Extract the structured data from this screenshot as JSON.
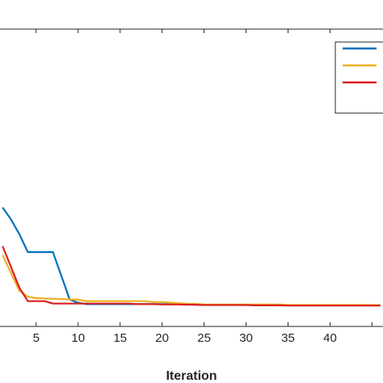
{
  "chart_data": {
    "type": "line",
    "title": "",
    "xlabel": "Iteration",
    "ylabel": "",
    "xlim": [
      0.5,
      46.5
    ],
    "ylim": [
      0,
      1
    ],
    "x_ticks": [
      5,
      10,
      15,
      20,
      25,
      30,
      35,
      40
    ],
    "grid": false,
    "legend": {
      "placement": "top-right",
      "entries": [
        "",
        "",
        ""
      ]
    },
    "series": [
      {
        "color": "#0072BD",
        "x": [
          1,
          2,
          3,
          4,
          5,
          6,
          7,
          8,
          9,
          10,
          11,
          12,
          13,
          14,
          15,
          16,
          17,
          18,
          19,
          20,
          21,
          22,
          23,
          24,
          25,
          26,
          27,
          28,
          29,
          30,
          31,
          32,
          33,
          34,
          35,
          36,
          37,
          38,
          39,
          40,
          41,
          42,
          43,
          44,
          45,
          46
        ],
        "y": [
          0.4,
          0.36,
          0.31,
          0.25,
          0.25,
          0.25,
          0.25,
          0.17,
          0.09,
          0.08,
          0.075,
          0.075,
          0.075,
          0.075,
          0.075,
          0.075,
          0.075,
          0.075,
          0.075,
          0.075,
          0.075,
          0.075,
          0.075,
          0.073,
          0.073,
          0.073,
          0.073,
          0.073,
          0.073,
          0.073,
          0.073,
          0.073,
          0.073,
          0.073,
          0.071,
          0.071,
          0.071,
          0.071,
          0.071,
          0.071,
          0.071,
          0.071,
          0.071,
          0.071,
          0.071,
          0.071
        ]
      },
      {
        "color": "#EDB120",
        "x": [
          1,
          2,
          3,
          4,
          5,
          6,
          7,
          8,
          9,
          10,
          11,
          12,
          13,
          14,
          15,
          16,
          17,
          18,
          19,
          20,
          21,
          22,
          23,
          24,
          25,
          26,
          27,
          28,
          29,
          30,
          31,
          32,
          33,
          34,
          35,
          36,
          37,
          38,
          39,
          40,
          41,
          42,
          43,
          44,
          45,
          46
        ],
        "y": [
          0.24,
          0.18,
          0.12,
          0.1,
          0.095,
          0.094,
          0.093,
          0.092,
          0.091,
          0.09,
          0.085,
          0.085,
          0.085,
          0.085,
          0.085,
          0.085,
          0.085,
          0.085,
          0.082,
          0.082,
          0.08,
          0.078,
          0.076,
          0.076,
          0.074,
          0.074,
          0.074,
          0.074,
          0.074,
          0.074,
          0.074,
          0.074,
          0.074,
          0.074,
          0.072,
          0.072,
          0.072,
          0.072,
          0.072,
          0.072,
          0.072,
          0.072,
          0.072,
          0.072,
          0.072,
          0.072
        ]
      },
      {
        "color": "#D92120",
        "x": [
          1,
          2,
          3,
          4,
          5,
          6,
          7,
          8,
          9,
          10,
          11,
          12,
          13,
          14,
          15,
          16,
          17,
          18,
          19,
          20,
          21,
          22,
          23,
          24,
          25,
          26,
          27,
          28,
          29,
          30,
          31,
          32,
          33,
          34,
          35,
          36,
          37,
          38,
          39,
          40,
          41,
          42,
          43,
          44,
          45,
          46
        ],
        "y": [
          0.27,
          0.2,
          0.13,
          0.085,
          0.085,
          0.085,
          0.077,
          0.077,
          0.077,
          0.077,
          0.077,
          0.077,
          0.077,
          0.077,
          0.077,
          0.077,
          0.075,
          0.075,
          0.075,
          0.074,
          0.074,
          0.074,
          0.073,
          0.073,
          0.072,
          0.072,
          0.072,
          0.072,
          0.072,
          0.072,
          0.071,
          0.071,
          0.071,
          0.071,
          0.07,
          0.07,
          0.07,
          0.07,
          0.07,
          0.07,
          0.07,
          0.07,
          0.07,
          0.07,
          0.07,
          0.07
        ]
      }
    ]
  }
}
